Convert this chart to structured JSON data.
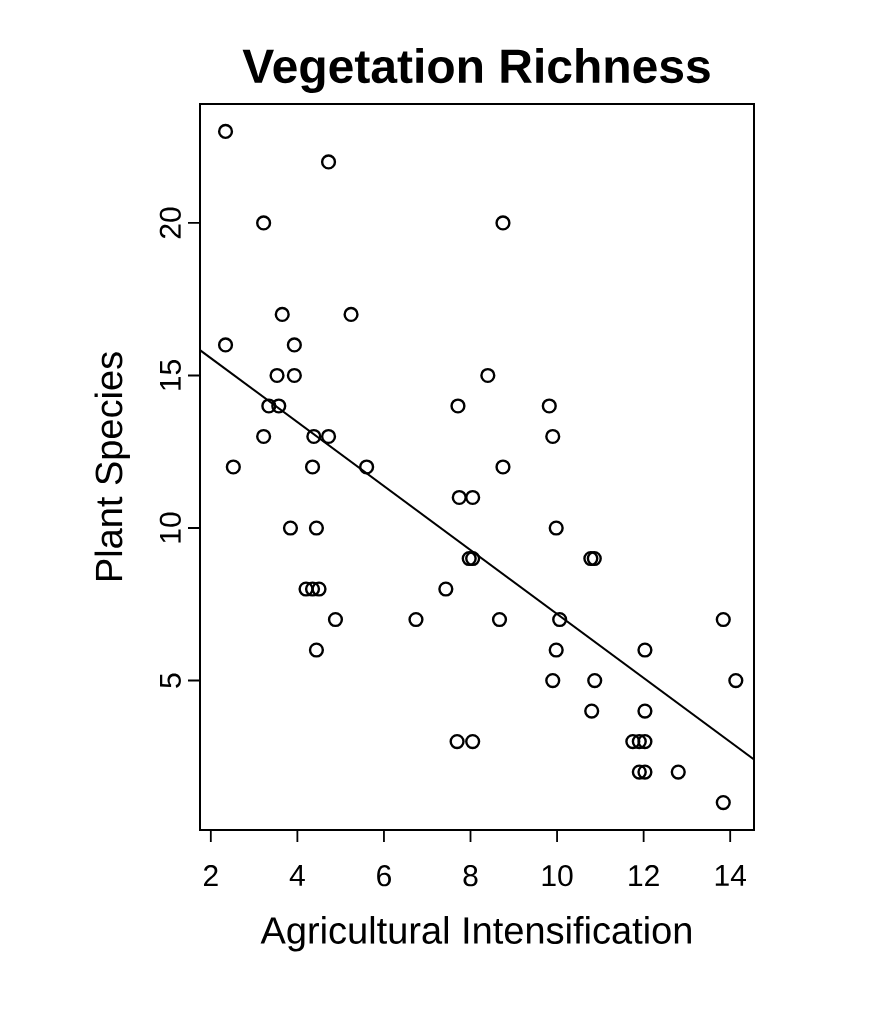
{
  "chart_data": {
    "type": "scatter",
    "title": "Vegetation Richness",
    "xlabel": "Agricultural Intensification",
    "ylabel": "Plant Species",
    "xlim": [
      1.75,
      14.55
    ],
    "ylim": [
      0.1,
      23.9
    ],
    "xticks": [
      2,
      4,
      6,
      8,
      10,
      12,
      14
    ],
    "yticks": [
      5,
      10,
      15,
      20
    ],
    "grid": false,
    "marker": "circle",
    "series": [
      {
        "color": "#000000",
        "x": [
          2.34,
          4.72,
          3.22,
          8.75,
          3.65,
          5.24,
          2.34,
          3.93,
          3.53,
          3.93,
          8.4,
          3.34,
          3.57,
          7.71,
          9.82,
          3.22,
          4.38,
          4.72,
          9.9,
          2.52,
          4.35,
          5.6,
          8.75,
          7.74,
          8.05,
          3.84,
          4.44,
          9.98,
          7.97,
          8.05,
          10.78,
          10.86,
          4.2,
          4.35,
          4.5,
          7.43,
          4.88,
          6.74,
          8.67,
          10.06,
          13.84,
          4.44,
          9.98,
          12.03,
          9.9,
          10.87,
          14.13,
          10.8,
          12.03,
          7.69,
          8.05,
          11.75,
          11.9,
          12.03,
          11.9,
          12.03,
          12.8,
          13.84
        ],
        "values": [
          23,
          22,
          20,
          20,
          17,
          17,
          16,
          16,
          15,
          15,
          15,
          14,
          14,
          14,
          14,
          13,
          13,
          13,
          13,
          12,
          12,
          12,
          12,
          11,
          11,
          10,
          10,
          10,
          9,
          9,
          9,
          9,
          8,
          8,
          8,
          8,
          7,
          7,
          7,
          7,
          7,
          6,
          6,
          6,
          5,
          5,
          5,
          4,
          4,
          3,
          3,
          3,
          3,
          3,
          2,
          2,
          2,
          1
        ]
      },
      {
        "type": "line",
        "color": "#000000",
        "marker": "none",
        "line_style": "solid",
        "x": [
          1.75,
          14.55
        ],
        "values": [
          15.83,
          2.41
        ]
      }
    ]
  }
}
